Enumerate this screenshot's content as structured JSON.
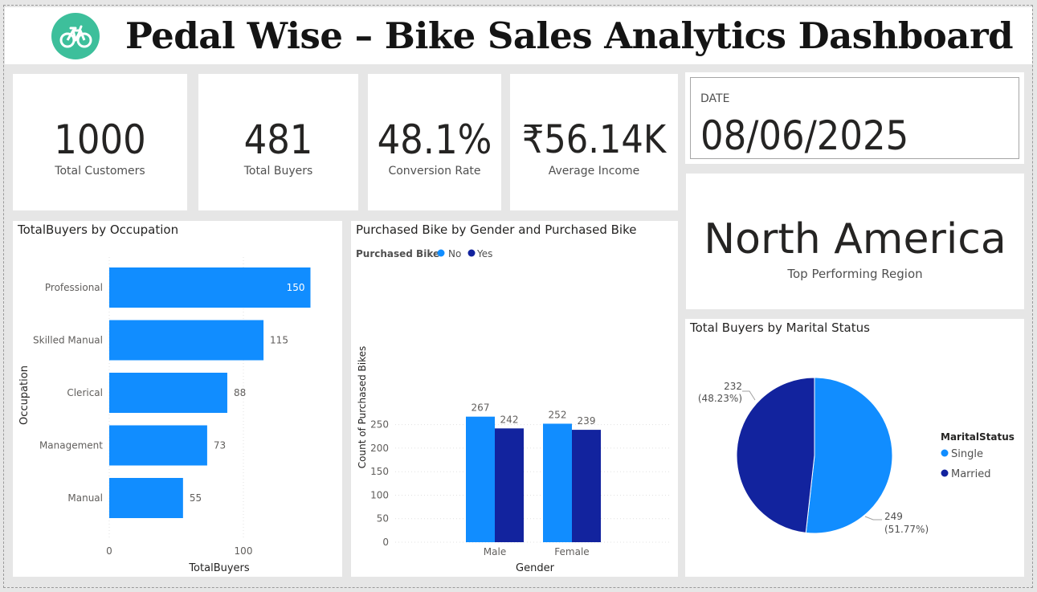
{
  "header": {
    "title": "Pedal Wise – Bike Sales Analytics Dashboard",
    "logo_icon": "bicycle-icon",
    "logo_color": "#3dbf9b"
  },
  "kpis": {
    "total_customers": {
      "value": "1000",
      "label": "Total Customers"
    },
    "total_buyers": {
      "value": "481",
      "label": "Total Buyers"
    },
    "conversion_rate": {
      "value": "48.1%",
      "label": "Conversion Rate"
    },
    "average_income": {
      "value": "₹56.14K",
      "label": "Average Income"
    }
  },
  "date_card": {
    "label": "DATE",
    "value": "08/06/2025"
  },
  "region_card": {
    "value": "North America",
    "label": "Top Performing Region"
  },
  "colors": {
    "light_blue": "#118dff",
    "dark_blue": "#12239e"
  },
  "chart_data": [
    {
      "type": "bar",
      "orientation": "horizontal",
      "title": "TotalBuyers by Occupation",
      "xlabel": "TotalBuyers",
      "ylabel": "Occupation",
      "categories": [
        "Professional",
        "Skilled Manual",
        "Clerical",
        "Management",
        "Manual"
      ],
      "values": [
        150,
        115,
        88,
        73,
        55
      ],
      "x_ticks": [
        "0",
        "100"
      ],
      "xlim": [
        0,
        150
      ]
    },
    {
      "type": "bar",
      "title": "Purchased Bike by Gender and Purchased Bike",
      "legend_title": "Purchased Bike",
      "legend_position": "top-left",
      "categories": [
        "Male",
        "Female"
      ],
      "series": [
        {
          "name": "No",
          "values": [
            267,
            252
          ]
        },
        {
          "name": "Yes",
          "values": [
            242,
            239
          ]
        }
      ],
      "xlabel": "Gender",
      "ylabel": "Count of Purchased Bikes",
      "y_ticks": [
        "0",
        "50",
        "100",
        "150",
        "200",
        "250"
      ],
      "ylim": [
        0,
        290
      ]
    },
    {
      "type": "pie",
      "title": "Total Buyers by Marital Status",
      "legend_title": "MaritalStatus",
      "legend_position": "right",
      "slices": [
        {
          "label": "Single",
          "value": 249,
          "value_label": "249",
          "percent_label": "(51.77%)"
        },
        {
          "label": "Married",
          "value": 232,
          "value_label": "232",
          "percent_label": "(48.23%)"
        }
      ]
    }
  ]
}
